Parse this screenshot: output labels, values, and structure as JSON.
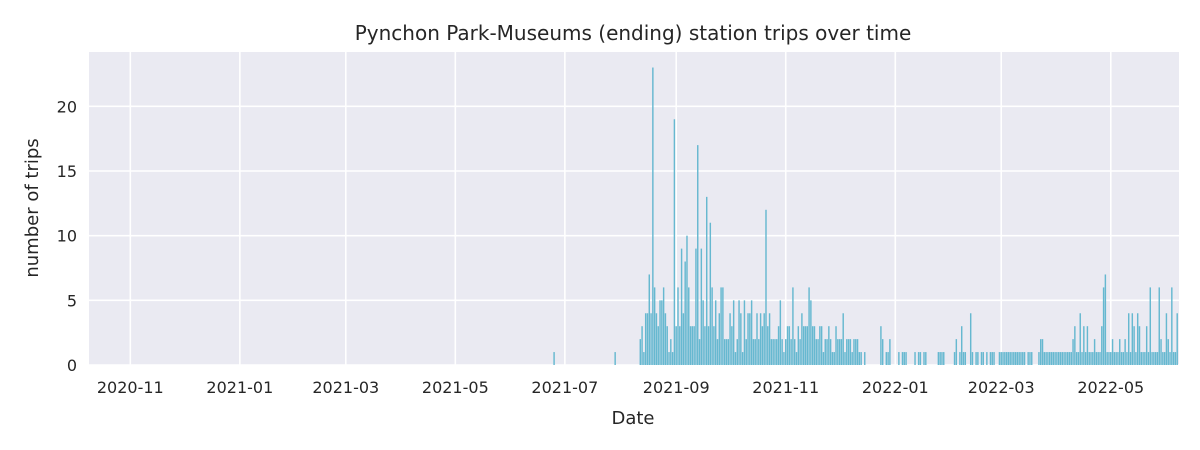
{
  "chart_data": {
    "type": "bar",
    "title": "Pynchon Park-Museums (ending) station trips over time",
    "xlabel": "Date",
    "ylabel": "number of trips",
    "xlim": [
      "2020-10-09",
      "2022-06-08"
    ],
    "ylim": [
      0,
      24.2
    ],
    "x_ticks": [
      "2020-11",
      "2021-01",
      "2021-03",
      "2021-05",
      "2021-07",
      "2021-09",
      "2021-11",
      "2022-01",
      "2022-03",
      "2022-05"
    ],
    "y_ticks": [
      0,
      5,
      10,
      15,
      20
    ],
    "grid": true,
    "background_color": "#eaeaf2",
    "bar_color": "#66b8d0",
    "x": [
      "2021-06-25",
      "2021-07-29",
      "2021-08-12",
      "2021-08-13",
      "2021-08-14",
      "2021-08-15",
      "2021-08-16",
      "2021-08-17",
      "2021-08-18",
      "2021-08-19",
      "2021-08-20",
      "2021-08-21",
      "2021-08-22",
      "2021-08-23",
      "2021-08-24",
      "2021-08-25",
      "2021-08-26",
      "2021-08-27",
      "2021-08-28",
      "2021-08-29",
      "2021-08-30",
      "2021-08-31",
      "2021-09-01",
      "2021-09-02",
      "2021-09-03",
      "2021-09-04",
      "2021-09-05",
      "2021-09-06",
      "2021-09-07",
      "2021-09-08",
      "2021-09-09",
      "2021-09-10",
      "2021-09-11",
      "2021-09-12",
      "2021-09-13",
      "2021-09-14",
      "2021-09-15",
      "2021-09-16",
      "2021-09-17",
      "2021-09-18",
      "2021-09-19",
      "2021-09-20",
      "2021-09-21",
      "2021-09-22",
      "2021-09-23",
      "2021-09-24",
      "2021-09-25",
      "2021-09-26",
      "2021-09-27",
      "2021-09-28",
      "2021-09-29",
      "2021-09-30",
      "2021-10-01",
      "2021-10-02",
      "2021-10-03",
      "2021-10-04",
      "2021-10-05",
      "2021-10-06",
      "2021-10-07",
      "2021-10-08",
      "2021-10-09",
      "2021-10-10",
      "2021-10-11",
      "2021-10-12",
      "2021-10-13",
      "2021-10-14",
      "2021-10-15",
      "2021-10-16",
      "2021-10-17",
      "2021-10-18",
      "2021-10-19",
      "2021-10-20",
      "2021-10-21",
      "2021-10-22",
      "2021-10-23",
      "2021-10-24",
      "2021-10-25",
      "2021-10-26",
      "2021-10-27",
      "2021-10-28",
      "2021-10-29",
      "2021-10-30",
      "2021-10-31",
      "2021-11-01",
      "2021-11-02",
      "2021-11-03",
      "2021-11-04",
      "2021-11-05",
      "2021-11-06",
      "2021-11-07",
      "2021-11-08",
      "2021-11-09",
      "2021-11-10",
      "2021-11-11",
      "2021-11-12",
      "2021-11-13",
      "2021-11-14",
      "2021-11-15",
      "2021-11-16",
      "2021-11-17",
      "2021-11-18",
      "2021-11-19",
      "2021-11-20",
      "2021-11-21",
      "2021-11-22",
      "2021-11-23",
      "2021-11-24",
      "2021-11-25",
      "2021-11-26",
      "2021-11-27",
      "2021-11-28",
      "2021-11-29",
      "2021-11-30",
      "2021-12-01",
      "2021-12-02",
      "2021-12-03",
      "2021-12-04",
      "2021-12-05",
      "2021-12-06",
      "2021-12-07",
      "2021-12-08",
      "2021-12-09",
      "2021-12-10",
      "2021-12-11",
      "2021-12-12",
      "2021-12-13",
      "2021-12-15",
      "2021-12-24",
      "2021-12-25",
      "2021-12-27",
      "2021-12-28",
      "2021-12-29",
      "2022-01-03",
      "2022-01-05",
      "2022-01-06",
      "2022-01-07",
      "2022-01-12",
      "2022-01-14",
      "2022-01-15",
      "2022-01-17",
      "2022-01-18",
      "2022-01-25",
      "2022-01-26",
      "2022-01-27",
      "2022-01-28",
      "2022-02-03",
      "2022-02-04",
      "2022-02-06",
      "2022-02-07",
      "2022-02-08",
      "2022-02-09",
      "2022-02-12",
      "2022-02-13",
      "2022-02-15",
      "2022-02-16",
      "2022-02-18",
      "2022-02-19",
      "2022-02-21",
      "2022-02-23",
      "2022-02-24",
      "2022-02-25",
      "2022-02-28",
      "2022-03-01",
      "2022-03-02",
      "2022-03-03",
      "2022-03-04",
      "2022-03-05",
      "2022-03-06",
      "2022-03-07",
      "2022-03-08",
      "2022-03-09",
      "2022-03-10",
      "2022-03-11",
      "2022-03-12",
      "2022-03-13",
      "2022-03-14",
      "2022-03-16",
      "2022-03-17",
      "2022-03-18",
      "2022-03-22",
      "2022-03-23",
      "2022-03-24",
      "2022-03-25",
      "2022-03-26",
      "2022-03-27",
      "2022-03-28",
      "2022-03-29",
      "2022-03-30",
      "2022-03-31",
      "2022-04-01",
      "2022-04-02",
      "2022-04-03",
      "2022-04-04",
      "2022-04-05",
      "2022-04-06",
      "2022-04-07",
      "2022-04-08",
      "2022-04-09",
      "2022-04-10",
      "2022-04-11",
      "2022-04-12",
      "2022-04-13",
      "2022-04-14",
      "2022-04-15",
      "2022-04-16",
      "2022-04-17",
      "2022-04-18",
      "2022-04-19",
      "2022-04-20",
      "2022-04-21",
      "2022-04-22",
      "2022-04-23",
      "2022-04-24",
      "2022-04-25",
      "2022-04-26",
      "2022-04-27",
      "2022-04-28",
      "2022-04-29",
      "2022-04-30",
      "2022-05-01",
      "2022-05-02",
      "2022-05-03",
      "2022-05-04",
      "2022-05-05",
      "2022-05-06",
      "2022-05-07",
      "2022-05-08",
      "2022-05-09",
      "2022-05-10",
      "2022-05-11",
      "2022-05-12",
      "2022-05-13",
      "2022-05-14",
      "2022-05-15",
      "2022-05-16",
      "2022-05-17",
      "2022-05-18",
      "2022-05-19",
      "2022-05-20",
      "2022-05-21",
      "2022-05-22",
      "2022-05-23",
      "2022-05-24",
      "2022-05-25",
      "2022-05-26",
      "2022-05-27",
      "2022-05-28",
      "2022-05-29",
      "2022-05-30",
      "2022-05-31",
      "2022-06-01",
      "2022-06-02",
      "2022-06-03",
      "2022-06-04",
      "2022-06-05",
      "2022-06-06",
      "2022-06-07"
    ],
    "values": [
      1,
      1,
      2,
      3,
      1,
      4,
      4,
      7,
      4,
      23,
      6,
      4,
      3,
      5,
      5,
      6,
      4,
      3,
      1,
      2,
      1,
      19,
      3,
      6,
      3,
      9,
      4,
      8,
      10,
      6,
      3,
      3,
      3,
      9,
      17,
      2,
      9,
      5,
      3,
      13,
      3,
      11,
      6,
      3,
      5,
      2,
      4,
      6,
      6,
      2,
      2,
      2,
      4,
      3,
      5,
      1,
      2,
      5,
      4,
      1,
      5,
      2,
      4,
      4,
      5,
      2,
      2,
      4,
      2,
      4,
      3,
      4,
      12,
      3,
      4,
      2,
      2,
      2,
      2,
      3,
      5,
      2,
      1,
      2,
      3,
      3,
      2,
      6,
      2,
      1,
      3,
      2,
      4,
      3,
      3,
      3,
      6,
      5,
      3,
      3,
      2,
      2,
      3,
      3,
      1,
      2,
      2,
      3,
      2,
      1,
      1,
      3,
      2,
      2,
      2,
      4,
      1,
      2,
      2,
      2,
      1,
      2,
      2,
      2,
      1,
      1,
      1,
      3,
      2,
      1,
      1,
      2,
      1,
      1,
      1,
      1,
      1,
      1,
      1,
      1,
      1,
      1,
      1,
      1,
      1,
      1,
      2,
      1,
      3,
      1,
      1,
      4,
      1,
      1,
      1,
      1,
      1,
      1,
      1,
      1,
      1,
      1,
      1,
      1,
      1,
      1,
      1,
      1,
      1,
      1,
      1,
      1,
      1,
      1,
      1,
      1,
      1,
      1,
      1,
      1,
      2,
      2,
      1,
      1,
      1,
      1,
      1,
      1,
      1,
      1,
      1,
      1,
      1,
      1,
      1,
      1,
      1,
      1,
      2,
      3,
      1,
      1,
      4,
      1,
      3,
      1,
      3,
      1,
      1,
      1,
      2,
      1,
      1,
      1,
      3,
      6,
      7,
      1,
      1,
      1,
      2,
      1,
      1,
      1,
      2,
      1,
      1,
      2,
      1,
      4,
      1,
      4,
      3,
      1,
      4,
      3,
      1,
      1,
      1,
      3,
      1,
      6,
      1,
      1,
      1,
      1,
      6,
      2,
      1,
      1,
      4,
      2,
      1,
      6,
      1,
      1,
      4
    ]
  }
}
